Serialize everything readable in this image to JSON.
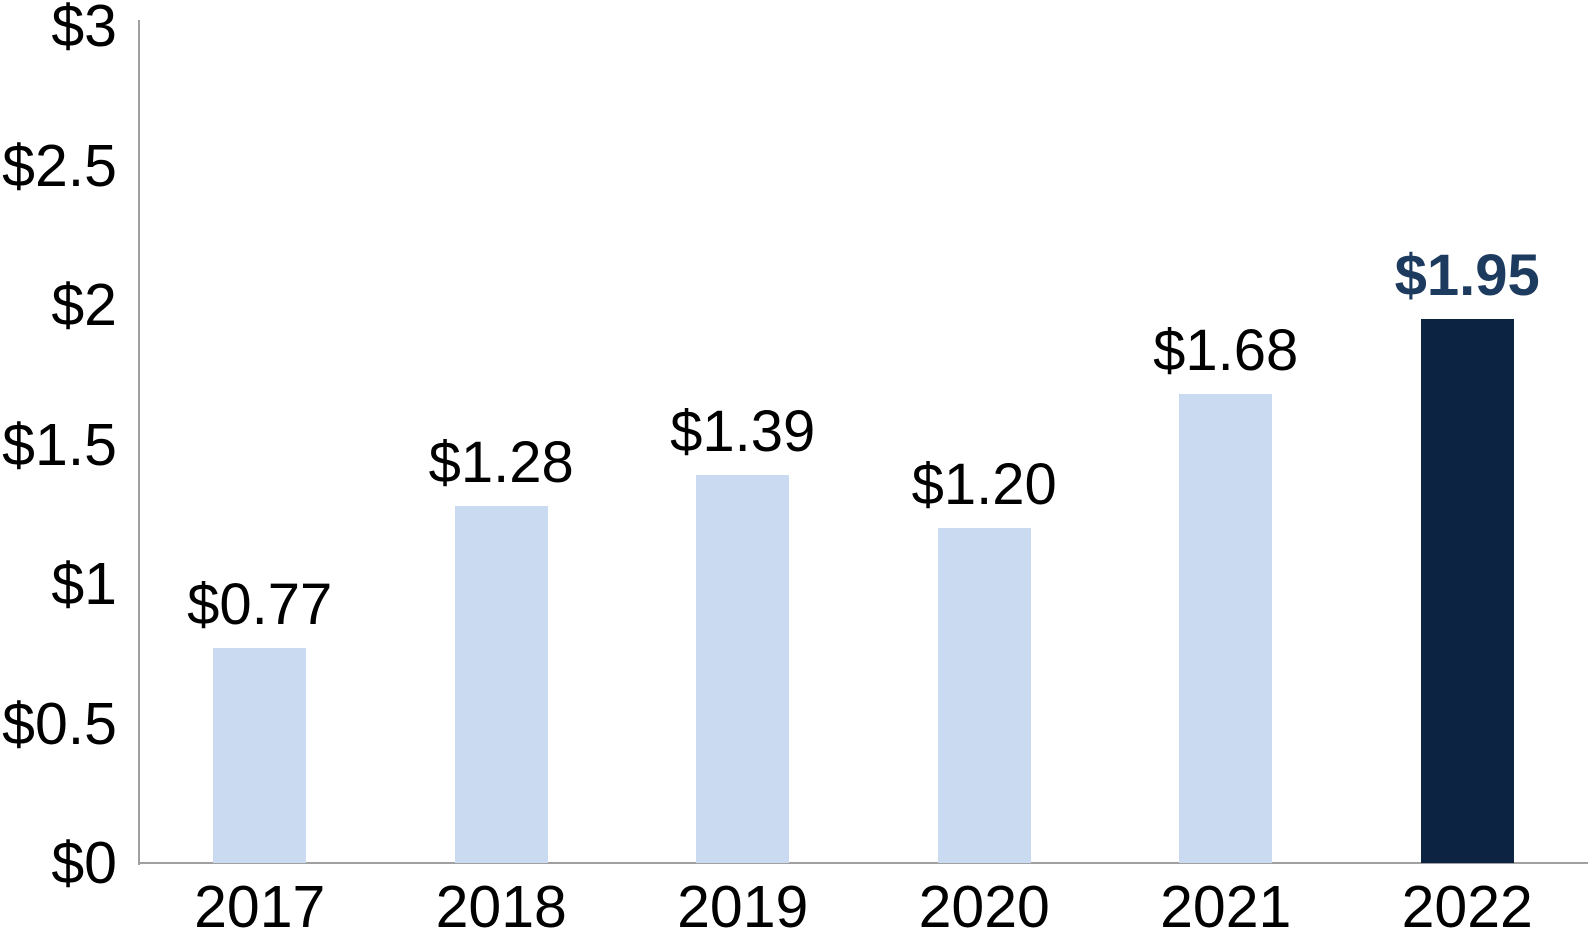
{
  "chart_data": {
    "type": "bar",
    "title": "",
    "xlabel": "",
    "ylabel": "",
    "categories": [
      "2017",
      "2018",
      "2019",
      "2020",
      "2021",
      "2022"
    ],
    "values": [
      0.77,
      1.28,
      1.39,
      1.2,
      1.68,
      1.95
    ],
    "bar_labels": [
      "$0.77",
      "$1.28",
      "$1.39",
      "$1.20",
      "$1.68",
      "$1.95"
    ],
    "currency_prefix": "$",
    "ylim": [
      0,
      3
    ],
    "y_ticks": [
      {
        "value": 3,
        "label": "$3"
      },
      {
        "value": 2.5,
        "label": "$2.5"
      },
      {
        "value": 2,
        "label": "$2"
      },
      {
        "value": 1.5,
        "label": "$1.5"
      },
      {
        "value": 1,
        "label": "$1"
      },
      {
        "value": 0.5,
        "label": "$0.5"
      },
      {
        "value": 0,
        "label": "$0"
      }
    ],
    "highlight_index": 5,
    "grid": false,
    "legend": null,
    "colors": {
      "bar": "#c9daf1",
      "highlight_bar": "#0c2441",
      "highlight_label": "#1d3b5e",
      "label": "#000000",
      "axis": "#a0a0a0",
      "background": "#ffffff"
    }
  }
}
